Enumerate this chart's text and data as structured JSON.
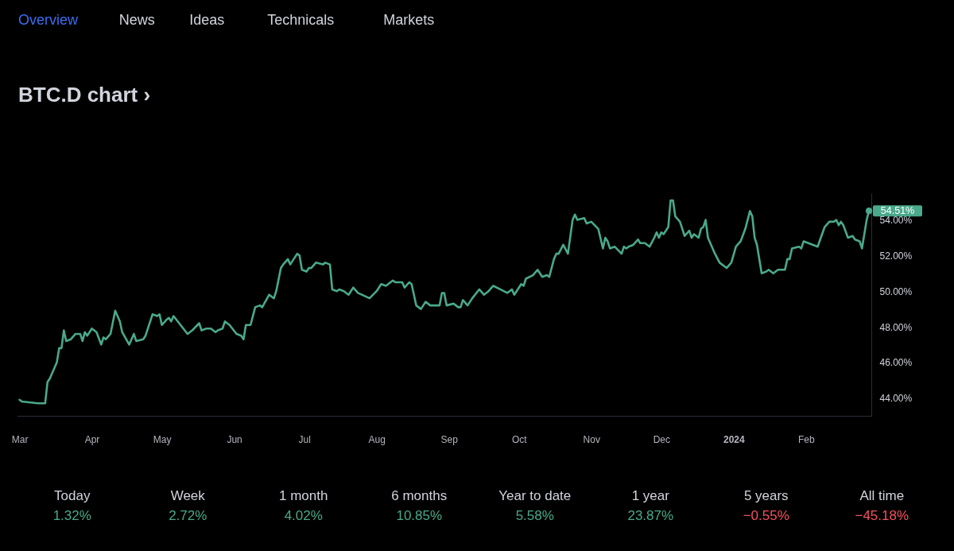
{
  "chart_data": [
    {
      "type": "other",
      "annotations": [
        "Overview",
        "News",
        "Ideas",
        "Technicals",
        "Markets"
      ]
    },
    {
      "type": "line",
      "title": "BTC.D chart ›",
      "x": [
        "2023-03-01",
        "2023-03-02",
        "2023-03-09",
        "2023-03-12",
        "2023-03-13",
        "2023-03-14",
        "2023-03-17",
        "2023-03-18",
        "2023-03-19",
        "2023-03-20",
        "2023-03-21",
        "2023-03-23",
        "2023-03-25",
        "2023-03-27",
        "2023-03-28",
        "2023-03-29",
        "2023-03-30",
        "2023-04-01",
        "2023-04-03",
        "2023-04-05",
        "2023-04-06",
        "2023-04-07",
        "2023-04-09",
        "2023-04-11",
        "2023-04-13",
        "2023-04-14",
        "2023-04-17",
        "2023-04-19",
        "2023-04-20",
        "2023-04-23",
        "2023-04-24",
        "2023-04-27",
        "2023-04-29",
        "2023-04-30",
        "2023-05-01",
        "2023-05-03",
        "2023-05-04",
        "2023-05-05",
        "2023-05-06",
        "2023-05-09",
        "2023-05-12",
        "2023-05-14",
        "2023-05-17",
        "2023-05-18",
        "2023-05-20",
        "2023-05-22",
        "2023-05-24",
        "2023-05-25",
        "2023-05-27",
        "2023-05-28",
        "2023-05-30",
        "2023-06-02",
        "2023-06-04",
        "2023-06-05",
        "2023-06-06",
        "2023-06-08",
        "2023-06-10",
        "2023-06-12",
        "2023-06-13",
        "2023-06-16",
        "2023-06-18",
        "2023-06-19",
        "2023-06-21",
        "2023-06-22",
        "2023-06-24",
        "2023-06-25",
        "2023-06-26",
        "2023-06-28",
        "2023-06-29",
        "2023-06-30",
        "2023-07-02",
        "2023-07-03",
        "2023-07-04",
        "2023-07-06",
        "2023-07-09",
        "2023-07-10",
        "2023-07-12",
        "2023-07-13",
        "2023-07-15",
        "2023-07-16",
        "2023-07-18",
        "2023-07-20",
        "2023-07-22",
        "2023-07-24",
        "2023-07-29",
        "2023-08-01",
        "2023-08-03",
        "2023-08-05",
        "2023-08-06",
        "2023-08-08",
        "2023-08-09",
        "2023-08-12",
        "2023-08-13",
        "2023-08-15",
        "2023-08-16",
        "2023-08-18",
        "2023-08-20",
        "2023-08-22",
        "2023-08-24",
        "2023-08-28",
        "2023-08-29",
        "2023-08-30",
        "2023-08-31",
        "2023-09-03",
        "2023-09-05",
        "2023-09-06",
        "2023-09-07",
        "2023-09-09",
        "2023-09-11",
        "2023-09-14",
        "2023-09-16",
        "2023-09-18",
        "2023-09-20",
        "2023-09-23",
        "2023-09-26",
        "2023-09-28",
        "2023-09-29",
        "2023-10-02",
        "2023-10-03",
        "2023-10-04",
        "2023-10-07",
        "2023-10-09",
        "2023-10-11",
        "2023-10-13",
        "2023-10-14",
        "2023-10-16",
        "2023-10-17",
        "2023-10-18",
        "2023-10-20",
        "2023-10-22",
        "2023-10-24",
        "2023-10-25",
        "2023-10-26",
        "2023-10-29",
        "2023-10-30",
        "2023-11-01",
        "2023-11-04",
        "2023-11-06",
        "2023-11-07",
        "2023-11-08",
        "2023-11-09",
        "2023-11-11",
        "2023-11-14",
        "2023-11-15",
        "2023-11-16",
        "2023-11-17",
        "2023-11-19",
        "2023-11-21",
        "2023-11-22",
        "2023-11-24",
        "2023-11-26",
        "2023-11-28",
        "2023-11-29",
        "2023-11-30",
        "2023-12-01",
        "2023-12-02",
        "2023-12-04",
        "2023-12-05",
        "2023-12-06",
        "2023-12-07",
        "2023-12-09",
        "2023-12-11",
        "2023-12-13",
        "2023-12-14",
        "2023-12-15",
        "2023-12-17",
        "2023-12-18",
        "2023-12-19",
        "2023-12-20",
        "2023-12-21",
        "2023-12-24",
        "2023-12-26",
        "2023-12-29",
        "2023-12-31",
        "2024-01-02",
        "2024-01-04",
        "2024-01-06",
        "2024-01-08",
        "2024-01-09",
        "2024-01-10",
        "2024-01-11",
        "2024-01-13",
        "2024-01-15",
        "2024-01-16",
        "2024-01-18",
        "2024-01-20",
        "2024-01-22",
        "2024-01-23",
        "2024-01-24",
        "2024-01-25",
        "2024-01-26",
        "2024-01-29",
        "2024-01-30",
        "2024-01-31",
        "2024-02-02",
        "2024-02-06",
        "2024-02-09",
        "2024-02-11",
        "2024-02-13",
        "2024-02-14",
        "2024-02-15",
        "2024-02-16",
        "2024-02-17",
        "2024-02-19",
        "2024-02-21",
        "2024-02-22",
        "2024-02-24",
        "2024-02-25",
        "2024-02-27",
        "2024-02-28"
      ],
      "series": [
        {
          "color": "#4aa98b",
          "values": [
            43.9,
            43.8,
            43.7,
            43.7,
            44.9,
            45.1,
            46.0,
            46.8,
            46.8,
            47.8,
            47.2,
            47.3,
            47.6,
            47.6,
            47.2,
            47.7,
            47.5,
            47.9,
            47.7,
            47.0,
            47.4,
            47.3,
            47.6,
            48.9,
            48.3,
            47.7,
            47.0,
            47.6,
            47.2,
            47.3,
            47.5,
            48.7,
            48.6,
            48.7,
            48.1,
            48.4,
            48.5,
            48.3,
            48.6,
            48.1,
            47.6,
            47.8,
            48.2,
            47.8,
            47.9,
            47.9,
            47.7,
            47.8,
            47.9,
            48.3,
            48.1,
            47.6,
            47.5,
            47.3,
            48.1,
            48.1,
            49.1,
            49.2,
            49.1,
            49.8,
            49.6,
            50.0,
            51.3,
            51.5,
            51.8,
            51.5,
            51.7,
            52.1,
            52.0,
            51.2,
            51.1,
            51.3,
            51.3,
            51.6,
            51.5,
            51.6,
            51.5,
            50.1,
            50.0,
            50.1,
            50.0,
            49.8,
            50.2,
            49.9,
            49.6,
            50.0,
            50.4,
            50.3,
            50.4,
            50.6,
            50.5,
            50.5,
            50.2,
            50.5,
            50.4,
            49.2,
            49.0,
            49.4,
            49.2,
            49.2,
            49.9,
            49.9,
            49.2,
            49.3,
            49.1,
            49.1,
            49.5,
            49.2,
            49.6,
            50.1,
            49.8,
            50.0,
            50.3,
            50.1,
            49.9,
            50.1,
            49.8,
            50.4,
            50.3,
            50.7,
            50.9,
            51.2,
            50.8,
            50.9,
            50.8,
            51.8,
            52.1,
            52.1,
            52.6,
            52.1,
            54.0,
            54.3,
            54.0,
            54.1,
            53.8,
            53.9,
            53.5,
            52.4,
            53.0,
            52.8,
            52.4,
            52.5,
            52.1,
            52.5,
            52.4,
            52.5,
            52.6,
            52.9,
            52.7,
            52.7,
            52.5,
            53.0,
            53.3,
            53.0,
            53.3,
            53.2,
            53.6,
            55.1,
            55.1,
            54.2,
            53.9,
            53.1,
            53.4,
            53.0,
            53.2,
            53.0,
            53.5,
            53.6,
            54.0,
            53.0,
            52.1,
            51.6,
            51.3,
            51.6,
            52.5,
            52.8,
            53.5,
            54.5,
            54.2,
            53.0,
            52.6,
            51.0,
            51.1,
            51.2,
            51.0,
            51.2,
            51.2,
            51.2,
            51.8,
            51.8,
            52.4,
            52.5,
            52.4,
            52.8,
            52.7,
            52.5,
            53.6,
            53.9,
            53.9,
            54.0,
            53.7,
            53.9,
            53.7,
            53.0,
            53.1,
            52.9,
            52.8,
            52.4,
            54.0,
            54.51
          ]
        },
        {
          "type": "scatter",
          "color": "#4aa98b",
          "x": [
            "2024-02-28"
          ],
          "values": [
            54.51
          ]
        }
      ],
      "xlim": [
        "2023-02-28",
        "2024-02-29"
      ],
      "xticks": [
        {
          "value": "2023-03-01",
          "label": "Mar"
        },
        {
          "value": "2023-04-01",
          "label": "Apr"
        },
        {
          "value": "2023-05-01",
          "label": "May"
        },
        {
          "value": "2023-06-01",
          "label": "Jun"
        },
        {
          "value": "2023-07-01",
          "label": "Jul"
        },
        {
          "value": "2023-08-01",
          "label": "Aug"
        },
        {
          "value": "2023-09-01",
          "label": "Sep"
        },
        {
          "value": "2023-10-01",
          "label": "Oct"
        },
        {
          "value": "2023-11-01",
          "label": "Nov"
        },
        {
          "value": "2023-12-01",
          "label": "Dec"
        },
        {
          "value": "2024-01-01",
          "label": "2024"
        },
        {
          "value": "2024-02-01",
          "label": "Feb"
        }
      ],
      "ylim": [
        43,
        55.5
      ],
      "yticks": [
        {
          "value": 44,
          "label": "44.00%"
        },
        {
          "value": 46,
          "label": "46.00%"
        },
        {
          "value": 48,
          "label": "48.00%"
        },
        {
          "value": 50,
          "label": "50.00%"
        },
        {
          "value": 52,
          "label": "52.00%"
        },
        {
          "value": 54,
          "label": "54.00%"
        }
      ],
      "annotations": [
        {
          "text": "54.51%",
          "x": "2024-02-28",
          "y": 54.51
        }
      ]
    },
    {
      "type": "other",
      "categories": [
        "Today",
        "Week",
        "1 month",
        "6 months",
        "Year to date",
        "1 year",
        "5 years",
        "All time"
      ],
      "value_labels": [
        "1.32%",
        "2.72%",
        "4.02%",
        "10.85%",
        "5.58%",
        "23.87%",
        "−0.55%",
        "−45.18%"
      ],
      "colors": [
        "#4aa98b",
        "#4aa98b",
        "#4aa98b",
        "#4aa98b",
        "#4aa98b",
        "#4aa98b",
        "#f7525f",
        "#f7525f"
      ]
    }
  ]
}
